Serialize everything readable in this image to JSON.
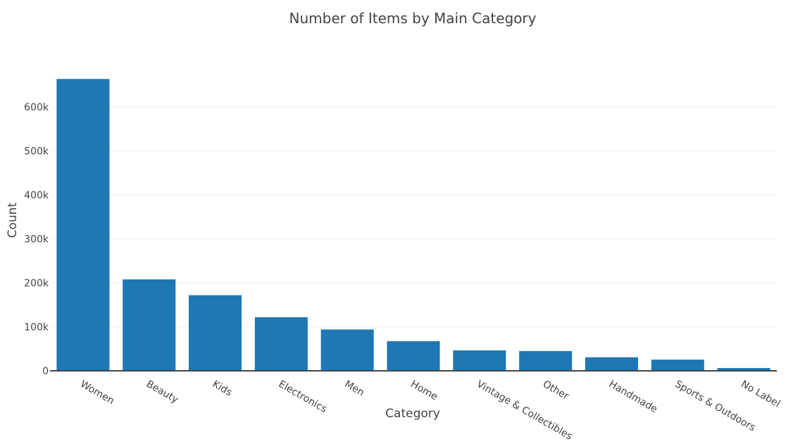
{
  "chart_data": {
    "type": "bar",
    "title": "Number of Items by Main Category",
    "xlabel": "Category",
    "ylabel": "Count",
    "categories": [
      "Women",
      "Beauty",
      "Kids",
      "Electronics",
      "Men",
      "Home",
      "Vintage & Collectibles",
      "Other",
      "Handmade",
      "Sports & Outdoors",
      "No Label"
    ],
    "values": [
      664000,
      208000,
      172000,
      122000,
      94000,
      67500,
      46500,
      45000,
      30800,
      25500,
      6300
    ],
    "ylim": [
      0,
      690000
    ],
    "yticks": [
      0,
      100000,
      200000,
      300000,
      400000,
      500000,
      600000
    ],
    "ytick_labels": [
      "0",
      "100k",
      "200k",
      "300k",
      "400k",
      "500k",
      "600k"
    ],
    "grid": true,
    "legend": false,
    "colors": {
      "bar": "#1f77b4",
      "grid": "#eeeeee",
      "text": "#444444",
      "axis": "#444444",
      "background": "#ffffff"
    }
  }
}
